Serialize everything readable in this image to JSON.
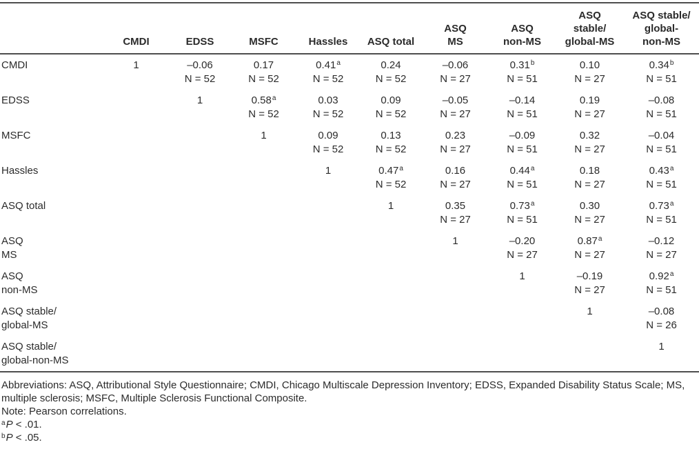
{
  "table": {
    "columns": [
      {
        "lines": []
      },
      {
        "lines": [
          "CMDI"
        ]
      },
      {
        "lines": [
          "EDSS"
        ]
      },
      {
        "lines": [
          "MSFC"
        ]
      },
      {
        "lines": [
          "Hassles"
        ]
      },
      {
        "lines": [
          "ASQ total"
        ]
      },
      {
        "lines": [
          "ASQ",
          "MS"
        ]
      },
      {
        "lines": [
          "ASQ",
          "non-MS"
        ]
      },
      {
        "lines": [
          "ASQ",
          "stable/",
          "global-MS"
        ]
      },
      {
        "lines": [
          "ASQ stable/",
          "global-",
          "non-MS"
        ]
      }
    ],
    "rows": [
      {
        "label_lines": [
          "CMDI"
        ],
        "cells": [
          {
            "value": "1"
          },
          {
            "value": "–0.06",
            "n": "N = 52"
          },
          {
            "value": "0.17",
            "n": "N = 52"
          },
          {
            "value": "0.41",
            "sup": "a",
            "n": "N = 52"
          },
          {
            "value": "0.24",
            "n": "N = 52"
          },
          {
            "value": "–0.06",
            "n": "N = 27"
          },
          {
            "value": "0.31",
            "sup": "b",
            "n": "N = 51"
          },
          {
            "value": "0.10",
            "n": "N = 27"
          },
          {
            "value": "0.34",
            "sup": "b",
            "n": "N = 51"
          }
        ]
      },
      {
        "label_lines": [
          "EDSS"
        ],
        "cells": [
          null,
          {
            "value": "1"
          },
          {
            "value": "0.58",
            "sup": "a",
            "n": "N = 52"
          },
          {
            "value": "0.03",
            "n": "N = 52"
          },
          {
            "value": "0.09",
            "n": "N = 52"
          },
          {
            "value": "–0.05",
            "n": "N = 27"
          },
          {
            "value": "–0.14",
            "n": "N = 51"
          },
          {
            "value": "0.19",
            "n": "N = 27"
          },
          {
            "value": "–0.08",
            "n": "N = 51"
          }
        ]
      },
      {
        "label_lines": [
          "MSFC"
        ],
        "cells": [
          null,
          null,
          {
            "value": "1"
          },
          {
            "value": "0.09",
            "n": "N = 52"
          },
          {
            "value": "0.13",
            "n": "N = 52"
          },
          {
            "value": "0.23",
            "n": "N = 27"
          },
          {
            "value": "–0.09",
            "n": "N = 51"
          },
          {
            "value": "0.32",
            "n": "N = 27"
          },
          {
            "value": "–0.04",
            "n": "N = 51"
          }
        ]
      },
      {
        "label_lines": [
          "Hassles"
        ],
        "cells": [
          null,
          null,
          null,
          {
            "value": "1"
          },
          {
            "value": "0.47",
            "sup": "a",
            "n": "N = 52"
          },
          {
            "value": "0.16",
            "n": "N = 27"
          },
          {
            "value": "0.44",
            "sup": "a",
            "n": "N = 51"
          },
          {
            "value": "0.18",
            "n": "N = 27"
          },
          {
            "value": "0.43",
            "sup": "a",
            "n": "N = 51"
          }
        ]
      },
      {
        "label_lines": [
          "ASQ total"
        ],
        "cells": [
          null,
          null,
          null,
          null,
          {
            "value": "1"
          },
          {
            "value": "0.35",
            "n": "N = 27"
          },
          {
            "value": "0.73",
            "sup": "a",
            "n": "N = 51"
          },
          {
            "value": "0.30",
            "n": "N = 27"
          },
          {
            "value": "0.73",
            "sup": "a",
            "n": "N = 51"
          }
        ]
      },
      {
        "label_lines": [
          "ASQ",
          "MS"
        ],
        "cells": [
          null,
          null,
          null,
          null,
          null,
          {
            "value": "1"
          },
          {
            "value": "–0.20",
            "n": "N = 27"
          },
          {
            "value": "0.87",
            "sup": "a",
            "n": "N = 27"
          },
          {
            "value": "–0.12",
            "n": "N = 27"
          }
        ]
      },
      {
        "label_lines": [
          "ASQ",
          "non-MS"
        ],
        "cells": [
          null,
          null,
          null,
          null,
          null,
          null,
          {
            "value": "1"
          },
          {
            "value": "–0.19",
            "n": "N = 27"
          },
          {
            "value": "0.92",
            "sup": "a",
            "n": "N = 51"
          }
        ]
      },
      {
        "label_lines": [
          "ASQ stable/",
          "global-MS"
        ],
        "cells": [
          null,
          null,
          null,
          null,
          null,
          null,
          null,
          {
            "value": "1"
          },
          {
            "value": "–0.08",
            "n": "N = 26"
          }
        ]
      },
      {
        "label_lines": [
          "ASQ stable/",
          "global-non-MS"
        ],
        "cells": [
          null,
          null,
          null,
          null,
          null,
          null,
          null,
          null,
          {
            "value": "1"
          }
        ]
      }
    ]
  },
  "footnotes": {
    "abbreviations": "Abbreviations: ASQ, Attributional Style Questionnaire; CMDI, Chicago Multiscale Depression Inventory; EDSS, Expanded Disability Status Scale; MS, multiple sclerosis; MSFC, Multiple Sclerosis Functional Composite.",
    "note": "Note: Pearson correlations.",
    "sig_a": {
      "sup": "a",
      "p": "P",
      "rest": " < .01."
    },
    "sig_b": {
      "sup": "b",
      "p": "P",
      "rest": " < .05."
    }
  }
}
